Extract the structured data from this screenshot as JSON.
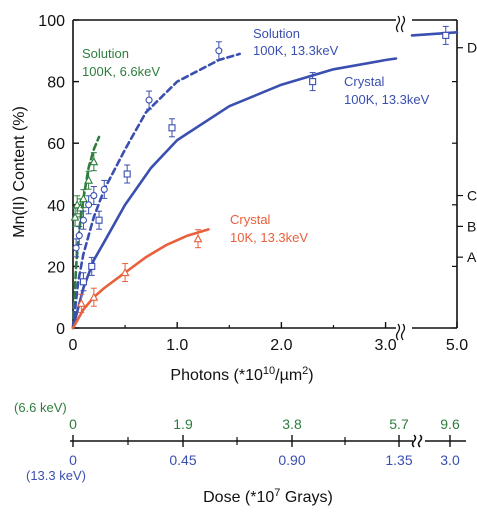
{
  "chart_data": {
    "type": "scatter",
    "ylabel": "Mn(II) Content (%)",
    "xlabel_main": "Photons (*10",
    "xlabel_exp1": "10",
    "xlabel_mid": "/µm",
    "xlabel_exp2": "2",
    "xlabel_tail": ")",
    "ylim": [
      0,
      100
    ],
    "xlim": [
      0,
      5.0
    ],
    "x_break": [
      3.1,
      4.8
    ],
    "grid": false,
    "legend": "none",
    "x_ticks": [
      "0",
      "1.0",
      "2.0",
      "3.0",
      "5.0"
    ],
    "y_ticks": [
      "0",
      "20",
      "40",
      "60",
      "80",
      "100"
    ],
    "right_markers": [
      {
        "label": "A",
        "y": 23
      },
      {
        "label": "B",
        "y": 33
      },
      {
        "label": "C",
        "y": 43
      },
      {
        "label": "D",
        "y": 91
      }
    ],
    "series": [
      {
        "label_line1": "Solution",
        "label_line2": "100K, 6.6keV",
        "color": "#2e7d3e",
        "style": "dashed",
        "marker": "triangle",
        "curve": [
          [
            0,
            0
          ],
          [
            0.03,
            20
          ],
          [
            0.06,
            32
          ],
          [
            0.1,
            42
          ],
          [
            0.15,
            52
          ],
          [
            0.2,
            58
          ],
          [
            0.25,
            62
          ]
        ],
        "points": [
          [
            0.02,
            36
          ],
          [
            0.04,
            40
          ],
          [
            0.07,
            39
          ],
          [
            0.1,
            42
          ],
          [
            0.15,
            48
          ],
          [
            0.2,
            54
          ]
        ]
      },
      {
        "label_line1": "Solution",
        "label_line2": "100K, 13.3keV",
        "color": "#3a4fb0",
        "style": "dashed",
        "marker": "circle",
        "curve": [
          [
            0,
            0
          ],
          [
            0.05,
            15
          ],
          [
            0.1,
            24
          ],
          [
            0.2,
            36
          ],
          [
            0.3,
            45
          ],
          [
            0.5,
            58
          ],
          [
            0.7,
            70
          ],
          [
            1.0,
            80
          ],
          [
            1.4,
            87
          ],
          [
            1.6,
            89
          ]
        ],
        "points": [
          [
            0.03,
            26
          ],
          [
            0.06,
            30
          ],
          [
            0.1,
            35
          ],
          [
            0.15,
            40
          ],
          [
            0.2,
            43
          ],
          [
            0.3,
            45
          ],
          [
            0.73,
            74
          ],
          [
            1.4,
            90
          ]
        ]
      },
      {
        "label_line1": "Crystal",
        "label_line2": "100K, 13.3keV",
        "color": "#3a4fb0",
        "style": "solid",
        "marker": "square",
        "curve": [
          [
            0,
            0
          ],
          [
            0.1,
            13
          ],
          [
            0.2,
            22
          ],
          [
            0.3,
            28
          ],
          [
            0.5,
            40
          ],
          [
            0.75,
            52
          ],
          [
            1.0,
            61
          ],
          [
            1.5,
            72
          ],
          [
            2.0,
            79
          ],
          [
            2.5,
            84
          ],
          [
            3.0,
            87
          ],
          [
            3.1,
            87.5
          ],
          [
            4.8,
            95
          ],
          [
            5.0,
            96
          ]
        ],
        "points": [
          [
            0.1,
            15
          ],
          [
            0.18,
            20
          ],
          [
            0.25,
            35
          ],
          [
            0.52,
            50
          ],
          [
            0.95,
            65
          ],
          [
            2.3,
            80
          ],
          [
            4.95,
            95
          ]
        ]
      },
      {
        "label_line1": "Crystal",
        "label_line2": "10K, 13.3keV",
        "color": "#e8603c",
        "style": "solid",
        "marker": "triangle",
        "curve": [
          [
            0,
            0
          ],
          [
            0.1,
            6
          ],
          [
            0.2,
            10
          ],
          [
            0.3,
            13
          ],
          [
            0.5,
            18
          ],
          [
            0.7,
            23
          ],
          [
            0.9,
            27
          ],
          [
            1.1,
            30
          ],
          [
            1.3,
            32
          ]
        ],
        "points": [
          [
            0.08,
            8
          ],
          [
            0.2,
            10
          ],
          [
            0.5,
            18
          ],
          [
            1.2,
            29
          ]
        ]
      }
    ],
    "dose_axis": {
      "green_label": "(6.6 keV)",
      "green_ticks": [
        "0",
        "1.9",
        "3.8",
        "5.7",
        "9.6"
      ],
      "blue_label": "(13.3 keV)",
      "blue_ticks": [
        "0",
        "0.45",
        "0.90",
        "1.35",
        "3.0"
      ],
      "title_pre": "Dose (*10",
      "title_exp": "7",
      "title_post": " Grays)"
    }
  }
}
